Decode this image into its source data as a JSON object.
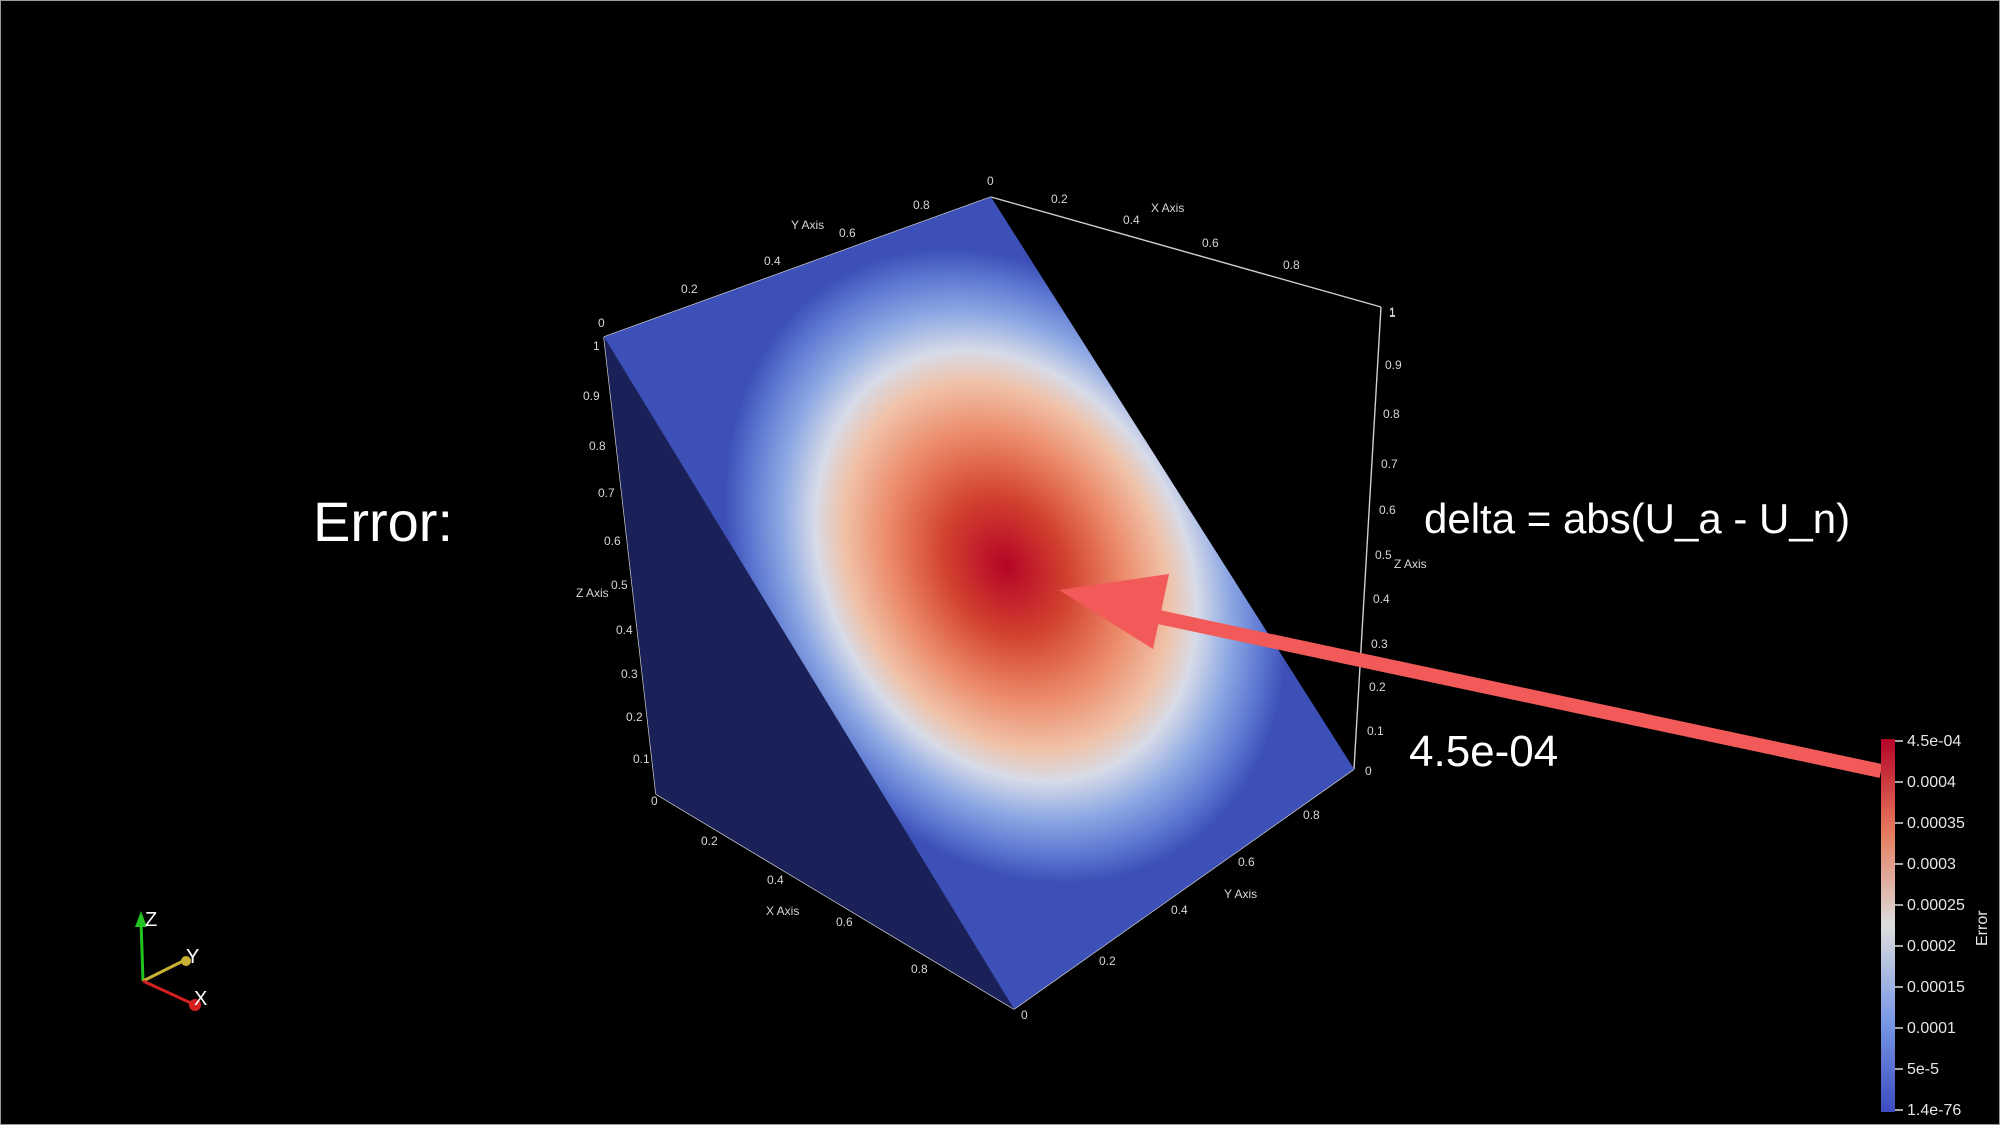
{
  "slide": {
    "heading": "Error:",
    "formula": "delta = abs(U_a - U_n)",
    "max_value": "4.5e-04"
  },
  "colors": {
    "background": "#000000",
    "low": "#3b4cc0",
    "mid": "#dddddd",
    "high": "#b40426",
    "arrow": "#f25a5a"
  },
  "axes": {
    "x_axis_title": "X Axis",
    "y_axis_title": "Y Axis",
    "z_axis_title": "Z Axis",
    "back_x_ticks": [
      "0",
      "0.2",
      "0.4",
      "0.6",
      "0.8",
      "1"
    ],
    "back_y_ticks": [
      "0",
      "0.2",
      "0.4",
      "0.6",
      "0.8",
      "0"
    ],
    "z_ticks_left": [
      "1",
      "0.9",
      "0.8",
      "0.7",
      "0.6",
      "0.5",
      "0.4",
      "0.3",
      "0.2",
      "0.1",
      "0"
    ],
    "z_ticks_right": [
      "1",
      "0.9",
      "0.8",
      "0.7",
      "0.6",
      "0.5",
      "0.4",
      "0.3",
      "0.2",
      "0.1",
      "0"
    ],
    "front_x_ticks": [
      "0.2",
      "0.4",
      "0.6",
      "0.8"
    ],
    "front_y_ticks": [
      "0.2",
      "0.4",
      "0.6",
      "0.8"
    ],
    "front_corner": "0"
  },
  "orientation_widget": {
    "z": "Z",
    "y": "Y",
    "x": "X"
  },
  "colorbar": {
    "title": "Error",
    "labels": [
      "4.5e-04",
      "0.0004",
      "0.00035",
      "0.0003",
      "0.00025",
      "0.0002",
      "0.00015",
      "0.0001",
      "5e-5",
      "1.4e-76"
    ]
  }
}
